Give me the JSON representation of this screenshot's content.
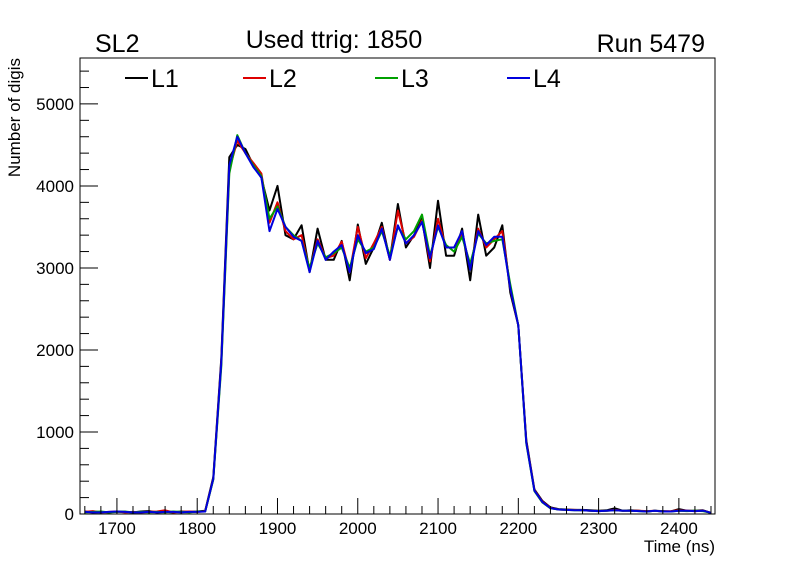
{
  "chart_data": {
    "type": "line",
    "title_left": "SL2",
    "title": "Used ttrig: 1850",
    "title_right": "Run 5479",
    "xlabel": "Time (ns)",
    "ylabel": "Number of digis",
    "xlim": [
      1654,
      2445
    ],
    "ylim": [
      0,
      5560
    ],
    "xticks": [
      1700,
      1800,
      1900,
      2000,
      2100,
      2200,
      2300,
      2400
    ],
    "yticks": [
      0,
      1000,
      2000,
      3000,
      4000,
      5000
    ],
    "grid": false,
    "legend_placement": "top",
    "x": [
      1660,
      1670,
      1680,
      1690,
      1700,
      1710,
      1720,
      1730,
      1740,
      1750,
      1760,
      1770,
      1780,
      1790,
      1800,
      1810,
      1820,
      1830,
      1840,
      1850,
      1860,
      1870,
      1880,
      1890,
      1900,
      1910,
      1920,
      1930,
      1940,
      1950,
      1960,
      1970,
      1980,
      1990,
      2000,
      2010,
      2020,
      2030,
      2040,
      2050,
      2060,
      2070,
      2080,
      2090,
      2100,
      2110,
      2120,
      2130,
      2140,
      2150,
      2160,
      2170,
      2180,
      2190,
      2200,
      2210,
      2220,
      2230,
      2240,
      2250,
      2260,
      2270,
      2280,
      2290,
      2300,
      2310,
      2320,
      2330,
      2340,
      2350,
      2360,
      2370,
      2380,
      2390,
      2400,
      2410,
      2420,
      2430,
      2440
    ],
    "series": [
      {
        "name": "L1",
        "color": "#000000",
        "values": [
          30,
          20,
          25,
          20,
          30,
          25,
          20,
          30,
          35,
          20,
          25,
          20,
          30,
          25,
          30,
          40,
          450,
          1900,
          4350,
          4500,
          4450,
          4250,
          4100,
          3700,
          4000,
          3400,
          3350,
          3520,
          2950,
          3480,
          3100,
          3100,
          3330,
          2850,
          3530,
          3050,
          3250,
          3550,
          3100,
          3780,
          3250,
          3400,
          3600,
          3000,
          3820,
          3150,
          3150,
          3480,
          2850,
          3650,
          3150,
          3250,
          3520,
          2700,
          2300,
          900,
          300,
          160,
          80,
          60,
          55,
          50,
          50,
          45,
          40,
          45,
          70,
          40,
          45,
          40,
          30,
          40,
          35,
          30,
          60,
          40,
          40,
          45,
          15
        ]
      },
      {
        "name": "L2",
        "color": "#dd0000",
        "values": [
          25,
          35,
          20,
          25,
          30,
          20,
          25,
          20,
          25,
          30,
          45,
          20,
          25,
          30,
          25,
          35,
          430,
          1850,
          4200,
          4550,
          4400,
          4280,
          4150,
          3550,
          3800,
          3450,
          3350,
          3400,
          2980,
          3350,
          3120,
          3150,
          3320,
          2950,
          3500,
          3120,
          3300,
          3500,
          3100,
          3700,
          3300,
          3380,
          3580,
          3080,
          3600,
          3250,
          3250,
          3420,
          3000,
          3480,
          3250,
          3350,
          3450,
          2750,
          2300,
          880,
          290,
          150,
          75,
          55,
          50,
          50,
          45,
          40,
          35,
          40,
          50,
          40,
          40,
          40,
          35,
          40,
          30,
          35,
          45,
          40,
          35,
          40,
          15
        ]
      },
      {
        "name": "L3",
        "color": "#00a000",
        "values": [
          20,
          25,
          30,
          20,
          25,
          30,
          20,
          25,
          20,
          25,
          20,
          30,
          25,
          20,
          30,
          30,
          420,
          1800,
          4150,
          4620,
          4400,
          4250,
          4120,
          3600,
          3750,
          3500,
          3400,
          3330,
          3000,
          3300,
          3130,
          3180,
          3250,
          3000,
          3350,
          3200,
          3250,
          3450,
          3150,
          3500,
          3350,
          3450,
          3650,
          3150,
          3500,
          3280,
          3200,
          3380,
          3050,
          3420,
          3300,
          3330,
          3350,
          2800,
          2300,
          860,
          280,
          140,
          70,
          55,
          50,
          45,
          45,
          40,
          35,
          40,
          45,
          40,
          40,
          35,
          30,
          40,
          30,
          30,
          40,
          35,
          40,
          35,
          15
        ]
      },
      {
        "name": "L4",
        "color": "#0000dd",
        "values": [
          25,
          20,
          20,
          25,
          30,
          25,
          20,
          20,
          25,
          20,
          25,
          25,
          20,
          25,
          25,
          30,
          430,
          1850,
          4250,
          4600,
          4400,
          4230,
          4100,
          3450,
          3720,
          3500,
          3380,
          3330,
          2950,
          3330,
          3100,
          3200,
          3280,
          2950,
          3400,
          3180,
          3230,
          3480,
          3100,
          3520,
          3300,
          3400,
          3560,
          3120,
          3520,
          3250,
          3250,
          3450,
          2980,
          3450,
          3280,
          3380,
          3380,
          2750,
          2300,
          870,
          285,
          145,
          72,
          55,
          50,
          45,
          45,
          40,
          35,
          40,
          45,
          40,
          40,
          35,
          30,
          40,
          30,
          30,
          40,
          40,
          35,
          40,
          15
        ]
      }
    ]
  }
}
